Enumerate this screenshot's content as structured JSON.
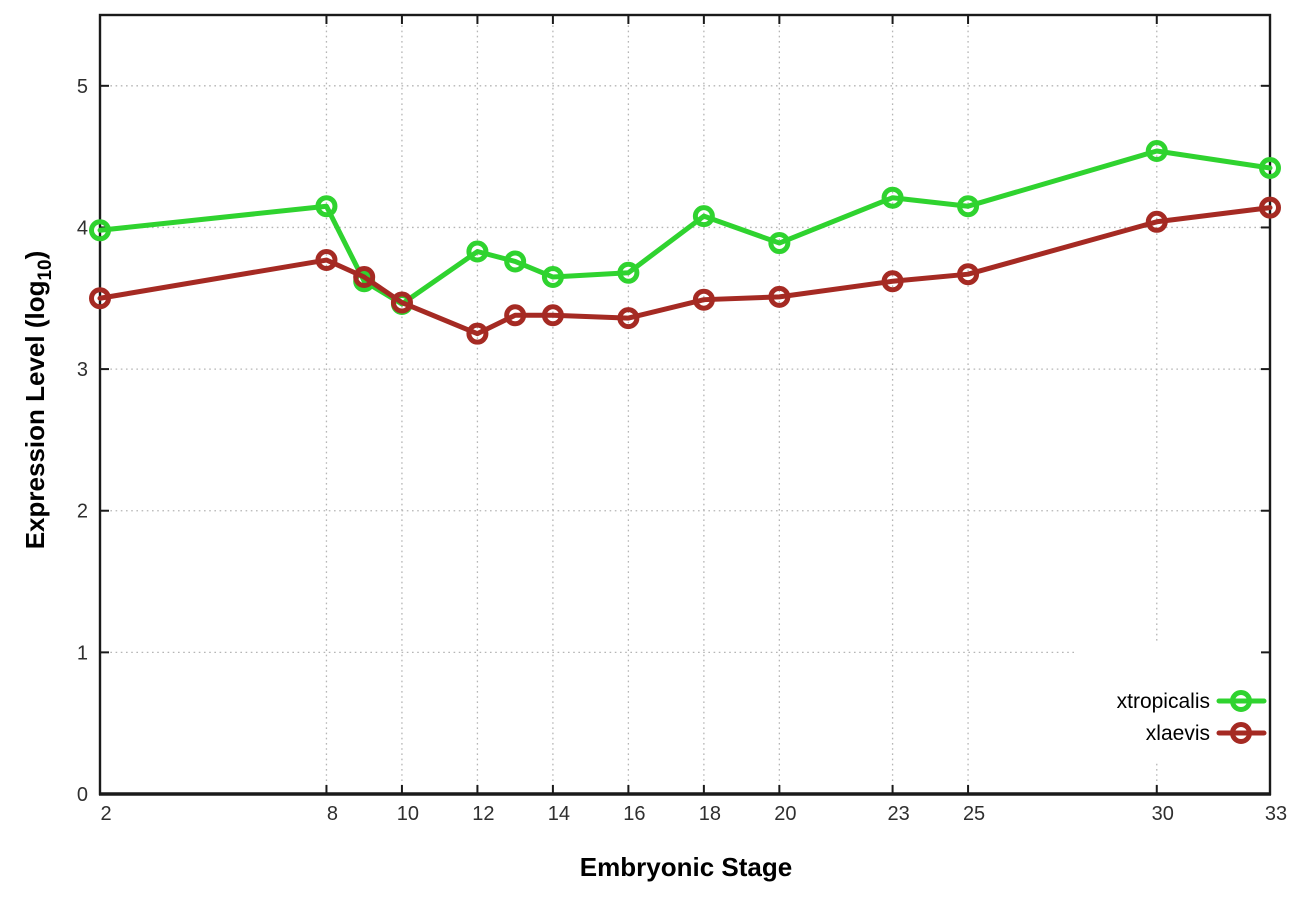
{
  "chart_data": {
    "type": "line",
    "title": "",
    "xlabel": "Embryonic Stage",
    "ylabel": "Expression Level (log10)",
    "ylabel_parts": {
      "pre": "Expression Level (log",
      "sub": "10",
      "post": ")"
    },
    "x": [
      2,
      8,
      9,
      10,
      12,
      13,
      14,
      16,
      18,
      20,
      23,
      25,
      30,
      33
    ],
    "series": [
      {
        "name": "xtropicalis",
        "color": "#2fd32f",
        "values": [
          3.98,
          4.15,
          3.62,
          3.46,
          3.83,
          3.76,
          3.65,
          3.68,
          4.08,
          3.89,
          4.21,
          4.15,
          4.54,
          4.42
        ]
      },
      {
        "name": "xlaevis",
        "color": "#a52a23",
        "values": [
          3.5,
          3.77,
          3.65,
          3.47,
          3.25,
          3.38,
          3.38,
          3.36,
          3.49,
          3.51,
          3.62,
          3.67,
          4.04,
          4.14
        ]
      }
    ],
    "xticks": [
      2,
      8,
      10,
      12,
      14,
      16,
      18,
      20,
      23,
      25,
      30,
      33
    ],
    "xtick_labels": [
      "2",
      "8",
      "10",
      "12",
      "14",
      "16",
      "18",
      "20",
      "23",
      "25",
      "30",
      "33"
    ],
    "yticks": [
      0,
      1,
      2,
      3,
      4,
      5
    ],
    "ytick_labels": [
      "0",
      "1",
      "2",
      "3",
      "4",
      "5"
    ],
    "xlim": [
      2,
      33
    ],
    "ylim": [
      0,
      5.5
    ],
    "grid": true,
    "grid_style": "dotted",
    "legend_position": "inside-lower-right",
    "legend_opaque": true,
    "colors": {
      "axis": "#1a1a1a",
      "grid": "#b5b5b5",
      "tick_text": "#2f2f2f",
      "background": "#ffffff"
    }
  }
}
